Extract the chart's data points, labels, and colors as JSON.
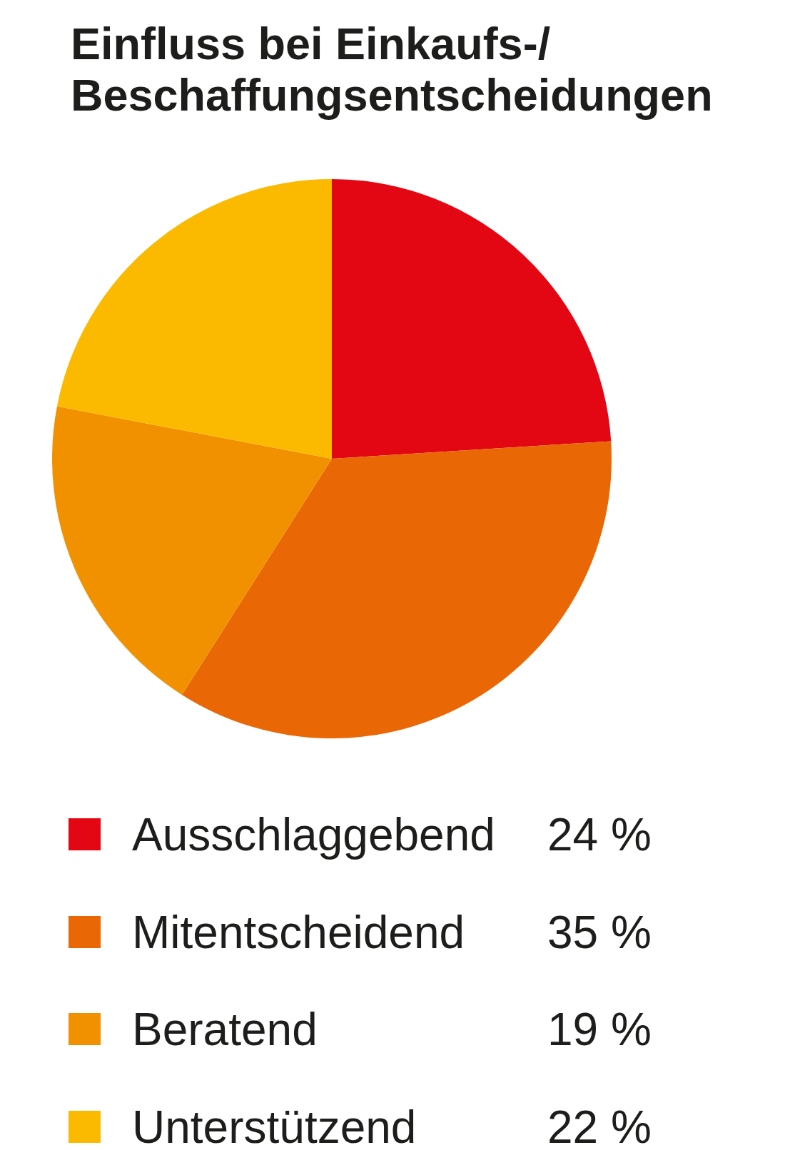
{
  "chart_data": {
    "type": "pie",
    "title": "Einfluss bei Einkaufs-/ Beschaffungsentscheidungen",
    "categories": [
      "Ausschlaggebend",
      "Mitentscheidend",
      "Beratend",
      "Unterstützend"
    ],
    "values": [
      24,
      35,
      19,
      22
    ],
    "colors": [
      "#e30613",
      "#ea6706",
      "#f29100",
      "#fbb900"
    ],
    "value_labels": [
      "24 %",
      "35 %",
      "19 %",
      "22 %"
    ],
    "legend": "bottom"
  }
}
